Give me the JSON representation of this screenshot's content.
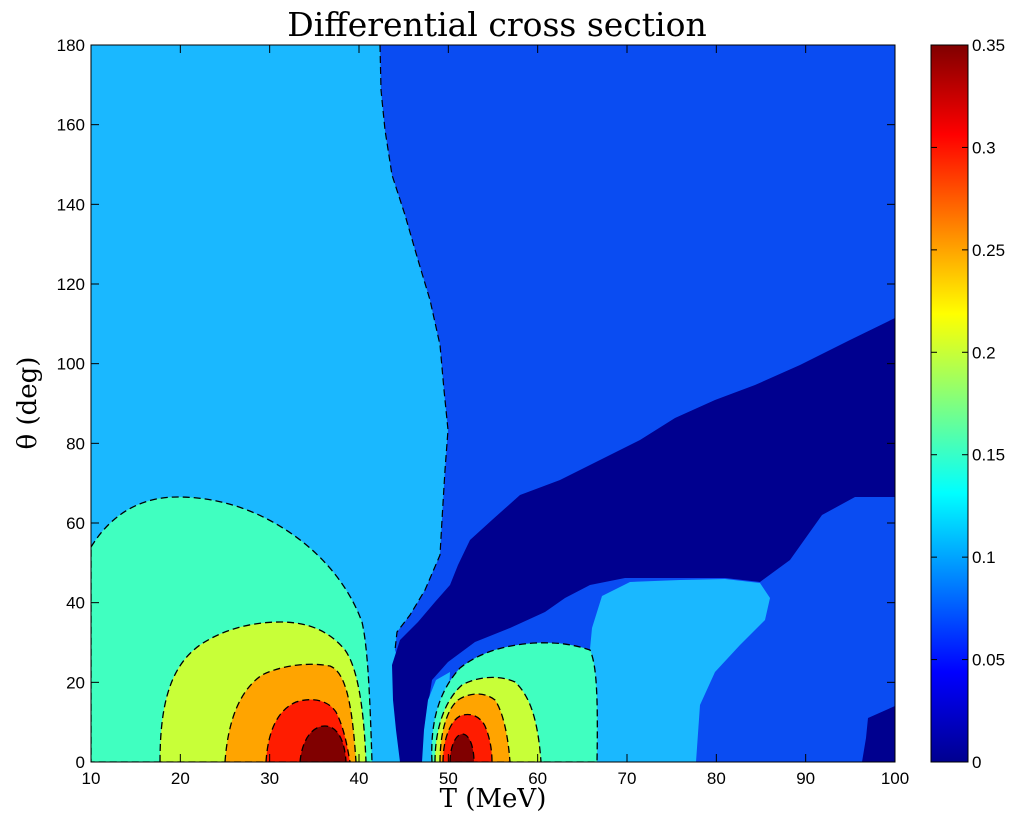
{
  "chart_data": {
    "type": "heatmap",
    "subtype": "filled-contour",
    "title": "Differential cross section",
    "xlabel": "T (MeV)",
    "ylabel": "θ (deg)",
    "xlim": [
      10,
      100
    ],
    "ylim": [
      0,
      180
    ],
    "x_ticks": [
      "10",
      "20",
      "30",
      "40",
      "50",
      "60",
      "70",
      "80",
      "90",
      "100"
    ],
    "y_ticks": [
      "0",
      "20",
      "40",
      "60",
      "80",
      "100",
      "120",
      "140",
      "160",
      "180"
    ],
    "colorbar": {
      "colormap": "jet",
      "range": [
        0,
        0.35
      ],
      "ticks": [
        "0",
        "0.05",
        "0.1",
        "0.15",
        "0.2",
        "0.25",
        "0.3",
        "0.35"
      ]
    },
    "contour_style": "black dashed contour lines between filled levels",
    "grid": false,
    "regions": [
      {
        "level": 0.1,
        "description": "background, T < ~43 MeV, all angles",
        "color": "#1ab8ff"
      },
      {
        "level": 0.04,
        "description": "background, T > ~43 MeV",
        "color": "#0a4cf2"
      },
      {
        "level": 0.01,
        "description": "minimum band rising from T≈45 MeV to θ≈66–112 at T=100",
        "color": "#00008f"
      },
      {
        "level": 0.13,
        "description": "forward lobe below θ≈66 for T<42",
        "color": "#40ffc0"
      },
      {
        "level": 0.18,
        "description": "lobe below θ≈36, T≈18–40",
        "color": "#c8ff38"
      },
      {
        "level": 0.24,
        "description": "lobe below θ≈23, T≈25–40",
        "color": "#ffa400"
      },
      {
        "level": 0.29,
        "description": "lobe below θ≈16, T≈29–38",
        "color": "#ff1c00"
      },
      {
        "level": 0.34,
        "description": "peak at T≈36 MeV, θ≈0",
        "color": "#800000"
      },
      {
        "level": 0.13,
        "description": "lobe below θ≈30, T≈47–61",
        "color": "#40ffc0"
      },
      {
        "level": 0.18,
        "description": "lobe below θ≈22, T≈48–56",
        "color": "#c8ff38"
      },
      {
        "level": 0.24,
        "description": "lobe below θ≈16, T≈49–55",
        "color": "#ffa400"
      },
      {
        "level": 0.29,
        "description": "lobe below θ≈11, T≈50–54",
        "color": "#ff1c00"
      },
      {
        "level": 0.33,
        "description": "peak at T≈52 MeV, θ≈2",
        "color": "#800000"
      },
      {
        "level": 0.1,
        "description": "region T≈58–86 below θ≈46",
        "color": "#1ab8ff"
      }
    ]
  }
}
